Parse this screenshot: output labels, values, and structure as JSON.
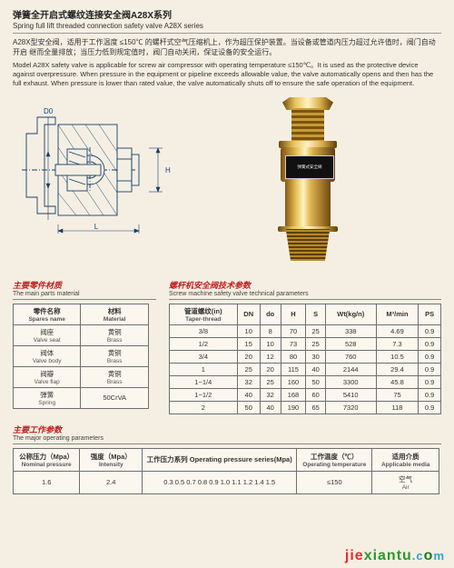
{
  "header": {
    "title_cn": "弹簧全开启式螺纹连接安全阀A28X系列",
    "title_en": "Spring full lift threaded connection safety valve A28X series"
  },
  "desc_cn": "A28X型安全阀，适用于工作温度 ≤150℃ 的螺杆式空气压缩机上，作为超压保护装置。当设备或管道内压力超过允许值时，阀门自动开启  继而全量排放；当压力低到规定值时，阀门自动关闭，保证设备的安全运行。",
  "desc_en": "Model A28X safety valve is applicable for screw air compressor with operating temperature ≤150℃。It is used as the protective device against overpressure. When pressure in the equipment or pipeline exceeds allowable value, the valve automatically opens and then has the full exhaust.  When pressure is lower than rated value, the valve automatically shuts off to ensure the safe operation of the equipment.",
  "diagram_labels": {
    "D0": "D0",
    "L": "L",
    "H": "H"
  },
  "photo_label": "弹簧式安全阀",
  "materials": {
    "head_cn": "主要零件材质",
    "head_en": "The main parts material",
    "cols": {
      "name_cn": "零件名称",
      "name_en": "Spares name",
      "mat_cn": "材料",
      "mat_en": "Material"
    },
    "rows": [
      {
        "name_cn": "阀座",
        "name_en": "Valve seat",
        "mat_cn": "黄铜",
        "mat_en": "Brass"
      },
      {
        "name_cn": "阀体",
        "name_en": "Valve body",
        "mat_cn": "黄铜",
        "mat_en": "Brass"
      },
      {
        "name_cn": "阀瓣",
        "name_en": "Valve flap",
        "mat_cn": "黄铜",
        "mat_en": "Brass"
      },
      {
        "name_cn": "弹簧",
        "name_en": "Spring",
        "mat_cn": "50CrVA",
        "mat_en": ""
      }
    ]
  },
  "spec": {
    "head_cn": "螺杆机安全阀技术参数",
    "head_en": "Screw machine safety valve technical parameters",
    "cols": [
      "管道螺纹(in)\nTaper-thread",
      "DN",
      "do",
      "H",
      "S",
      "Wt(kg/n)",
      "M³/min",
      "PS"
    ],
    "rows": [
      [
        "3/8",
        "10",
        "8",
        "70",
        "25",
        "338",
        "4.69",
        "0.9"
      ],
      [
        "1/2",
        "15",
        "10",
        "73",
        "25",
        "528",
        "7.3",
        "0.9"
      ],
      [
        "3/4",
        "20",
        "12",
        "80",
        "30",
        "760",
        "10.5",
        "0.9"
      ],
      [
        "1",
        "25",
        "20",
        "115",
        "40",
        "2144",
        "29.4",
        "0.9"
      ],
      [
        "1−1/4",
        "32",
        "25",
        "160",
        "50",
        "3300",
        "45.8",
        "0.9"
      ],
      [
        "1−1/2",
        "40",
        "32",
        "168",
        "60",
        "5410",
        "75",
        "0.9"
      ],
      [
        "2",
        "50",
        "40",
        "190",
        "65",
        "7320",
        "118",
        "0.9"
      ]
    ]
  },
  "op": {
    "head_cn": "主要工作参数",
    "head_en": "The major operating parameters",
    "cols": {
      "p_cn": "公称压力（Mpa）",
      "p_en": "Nominal pressure",
      "i_cn": "强度（Mpa）",
      "i_en": "Intensity",
      "series_cn": "工作压力系列",
      "series_en": "Operating pressure series(Mpa)",
      "t_cn": "工作温度（℃）",
      "t_en": "Operating temperature",
      "m_cn": "适用介质",
      "m_en": "Applicable media"
    },
    "row": {
      "p": "1.6",
      "i": "2.4",
      "series": "0.3 0.5 0.7 0.8 0.9 1.0 1.1 1.2 1.4 1.5",
      "t": "≤150",
      "m_cn": "空气",
      "m_en": "Air"
    }
  },
  "watermark": {
    "a": "jie",
    "b": "xiantu",
    "c": ".c",
    "d": "m"
  }
}
